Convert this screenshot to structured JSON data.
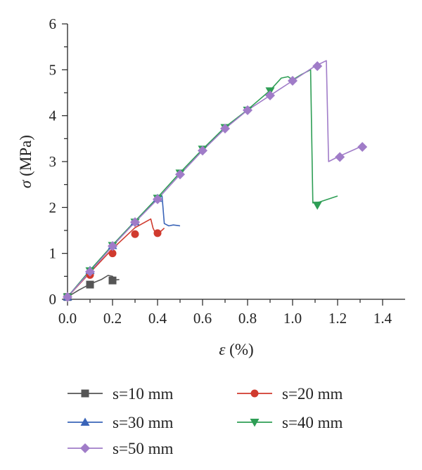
{
  "chart_data": {
    "type": "line",
    "xlabel_symbol": "ε",
    "xlabel_unit": " (%)",
    "ylabel_symbol": "σ",
    "ylabel_unit": " (MPa)",
    "xlim": [
      0,
      1.5
    ],
    "ylim": [
      0,
      6
    ],
    "x_ticks": [
      "0.0",
      "0.2",
      "0.4",
      "0.6",
      "0.8",
      "1.0",
      "1.2",
      "1.4"
    ],
    "y_ticks": [
      "0",
      "1",
      "2",
      "3",
      "4",
      "5",
      "6"
    ],
    "grid": false,
    "legend_position": "bottom",
    "series": [
      {
        "name": "s=10 mm",
        "color": "#555555",
        "marker": "square",
        "line": [
          [
            0,
            0.05
          ],
          [
            0.05,
            0.2
          ],
          [
            0.1,
            0.33
          ],
          [
            0.15,
            0.43
          ],
          [
            0.18,
            0.52
          ],
          [
            0.2,
            0.5
          ],
          [
            0.21,
            0.42
          ],
          [
            0.23,
            0.43
          ]
        ],
        "markers": [
          [
            0,
            0.05
          ],
          [
            0.1,
            0.32
          ],
          [
            0.2,
            0.41
          ]
        ]
      },
      {
        "name": "s=20 mm",
        "color": "#d03a2e",
        "marker": "circle",
        "line": [
          [
            0,
            0.05
          ],
          [
            0.1,
            0.58
          ],
          [
            0.2,
            1.1
          ],
          [
            0.3,
            1.56
          ],
          [
            0.37,
            1.75
          ],
          [
            0.38,
            1.55
          ],
          [
            0.39,
            1.45
          ],
          [
            0.41,
            1.46
          ],
          [
            0.43,
            1.55
          ]
        ],
        "markers": [
          [
            0,
            0.05
          ],
          [
            0.1,
            0.53
          ],
          [
            0.2,
            1.0
          ],
          [
            0.3,
            1.42
          ],
          [
            0.4,
            1.44
          ]
        ]
      },
      {
        "name": "s=30 mm",
        "color": "#3a64b8",
        "marker": "triangle-up",
        "line": [
          [
            0,
            0.05
          ],
          [
            0.1,
            0.63
          ],
          [
            0.2,
            1.18
          ],
          [
            0.3,
            1.7
          ],
          [
            0.4,
            2.2
          ],
          [
            0.42,
            2.25
          ],
          [
            0.43,
            1.65
          ],
          [
            0.45,
            1.6
          ],
          [
            0.47,
            1.62
          ],
          [
            0.5,
            1.6
          ]
        ],
        "markers": [
          [
            0,
            0.05
          ],
          [
            0.1,
            0.63
          ],
          [
            0.2,
            1.17
          ],
          [
            0.3,
            1.69
          ],
          [
            0.4,
            2.2
          ]
        ]
      },
      {
        "name": "s=40 mm",
        "color": "#2e9e55",
        "marker": "triangle-down",
        "line": [
          [
            0,
            0.05
          ],
          [
            0.1,
            0.63
          ],
          [
            0.2,
            1.18
          ],
          [
            0.3,
            1.7
          ],
          [
            0.4,
            2.22
          ],
          [
            0.5,
            2.76
          ],
          [
            0.6,
            3.27
          ],
          [
            0.7,
            3.75
          ],
          [
            0.8,
            4.13
          ],
          [
            0.9,
            4.55
          ],
          [
            0.95,
            4.82
          ],
          [
            0.98,
            4.85
          ],
          [
            1.0,
            4.78
          ],
          [
            1.04,
            4.9
          ],
          [
            1.08,
            5.0
          ],
          [
            1.09,
            2.1
          ],
          [
            1.12,
            2.12
          ],
          [
            1.2,
            2.25
          ]
        ],
        "markers": [
          [
            0,
            0.05
          ],
          [
            0.1,
            0.62
          ],
          [
            0.2,
            1.17
          ],
          [
            0.3,
            1.68
          ],
          [
            0.4,
            2.2
          ],
          [
            0.5,
            2.75
          ],
          [
            0.6,
            3.27
          ],
          [
            0.7,
            3.74
          ],
          [
            0.8,
            4.12
          ],
          [
            0.9,
            4.54
          ],
          [
            1.11,
            2.05
          ]
        ]
      },
      {
        "name": "s=50 mm",
        "color": "#a07cc8",
        "marker": "diamond",
        "line": [
          [
            0,
            0.05
          ],
          [
            0.1,
            0.6
          ],
          [
            0.2,
            1.16
          ],
          [
            0.3,
            1.68
          ],
          [
            0.4,
            2.18
          ],
          [
            0.5,
            2.72
          ],
          [
            0.6,
            3.24
          ],
          [
            0.7,
            3.72
          ],
          [
            0.8,
            4.12
          ],
          [
            0.9,
            4.44
          ],
          [
            1.0,
            4.76
          ],
          [
            1.1,
            5.08
          ],
          [
            1.15,
            5.2
          ],
          [
            1.16,
            3.0
          ],
          [
            1.2,
            3.1
          ],
          [
            1.3,
            3.32
          ]
        ],
        "markers": [
          [
            0,
            0.05
          ],
          [
            0.1,
            0.6
          ],
          [
            0.2,
            1.16
          ],
          [
            0.3,
            1.68
          ],
          [
            0.4,
            2.18
          ],
          [
            0.5,
            2.72
          ],
          [
            0.6,
            3.24
          ],
          [
            0.7,
            3.72
          ],
          [
            0.8,
            4.12
          ],
          [
            0.9,
            4.44
          ],
          [
            1.0,
            4.76
          ],
          [
            1.11,
            5.08
          ],
          [
            1.21,
            3.1
          ],
          [
            1.31,
            3.32
          ]
        ]
      }
    ]
  }
}
